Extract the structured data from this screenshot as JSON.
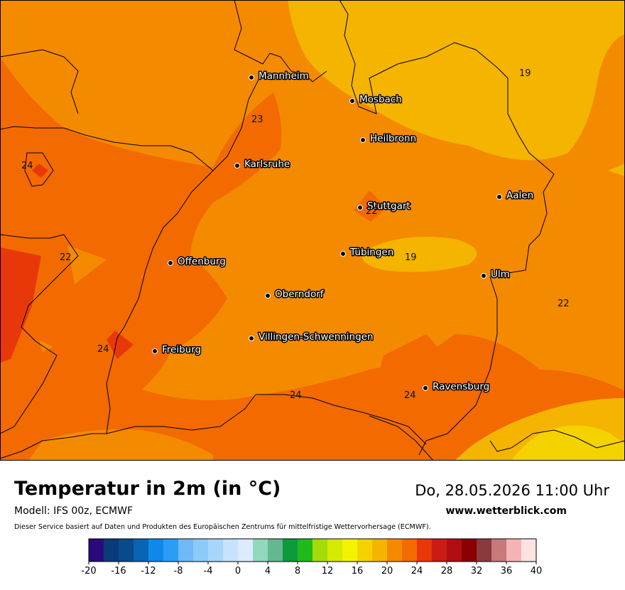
{
  "header": {
    "title": "Temperatur in 2m (in °C)",
    "datetime": "Do, 28.05.2026 11:00 Uhr",
    "model": "Modell: IFS 00z, ECMWF",
    "website": "www.wetterblick.com",
    "disclaimer": "Dieser Service basiert auf Daten und Produkten des Europäischen Zentrums für mittelfristige Wettervorhersage (ECMWF)."
  },
  "cities": [
    {
      "name": "Mannheim"
    },
    {
      "name": "Mosbach"
    },
    {
      "name": "Heilbronn"
    },
    {
      "name": "Karlsruhe"
    },
    {
      "name": "Stuttgart"
    },
    {
      "name": "Aalen"
    },
    {
      "name": "Tübingen"
    },
    {
      "name": "Offenburg"
    },
    {
      "name": "Ulm"
    },
    {
      "name": "Oberndorf"
    },
    {
      "name": "Villingen-Schwenningen"
    },
    {
      "name": "Freiburg"
    },
    {
      "name": "Ravensburg"
    }
  ],
  "isolines": [
    "19",
    "23",
    "24",
    "22",
    "22",
    "19",
    "22",
    "24",
    "24",
    "24"
  ],
  "legend": {
    "ticks": [
      "-20",
      "-16",
      "-12",
      "-8",
      "-4",
      "0",
      "4",
      "8",
      "12",
      "16",
      "20",
      "24",
      "28",
      "32",
      "36",
      "40"
    ],
    "min": -20,
    "max": 40,
    "step": 2,
    "colors": [
      "#2a0a7a",
      "#0a3a7a",
      "#0a4a8a",
      "#0a64b4",
      "#1088e8",
      "#2c9cf4",
      "#70b8f8",
      "#8ccaf8",
      "#a8d6fa",
      "#c6e2fc",
      "#dcecfe",
      "#94d8bc",
      "#64b890",
      "#0e9a3a",
      "#22ba1a",
      "#a4dc0a",
      "#d4ea02",
      "#f4f200",
      "#f4d200",
      "#f4b400",
      "#f48a00",
      "#f26a00",
      "#e8380a",
      "#c81c14",
      "#b00e14",
      "#880000",
      "#8a3a3a",
      "#c87878",
      "#f4b4b4",
      "#fde2e2"
    ]
  }
}
